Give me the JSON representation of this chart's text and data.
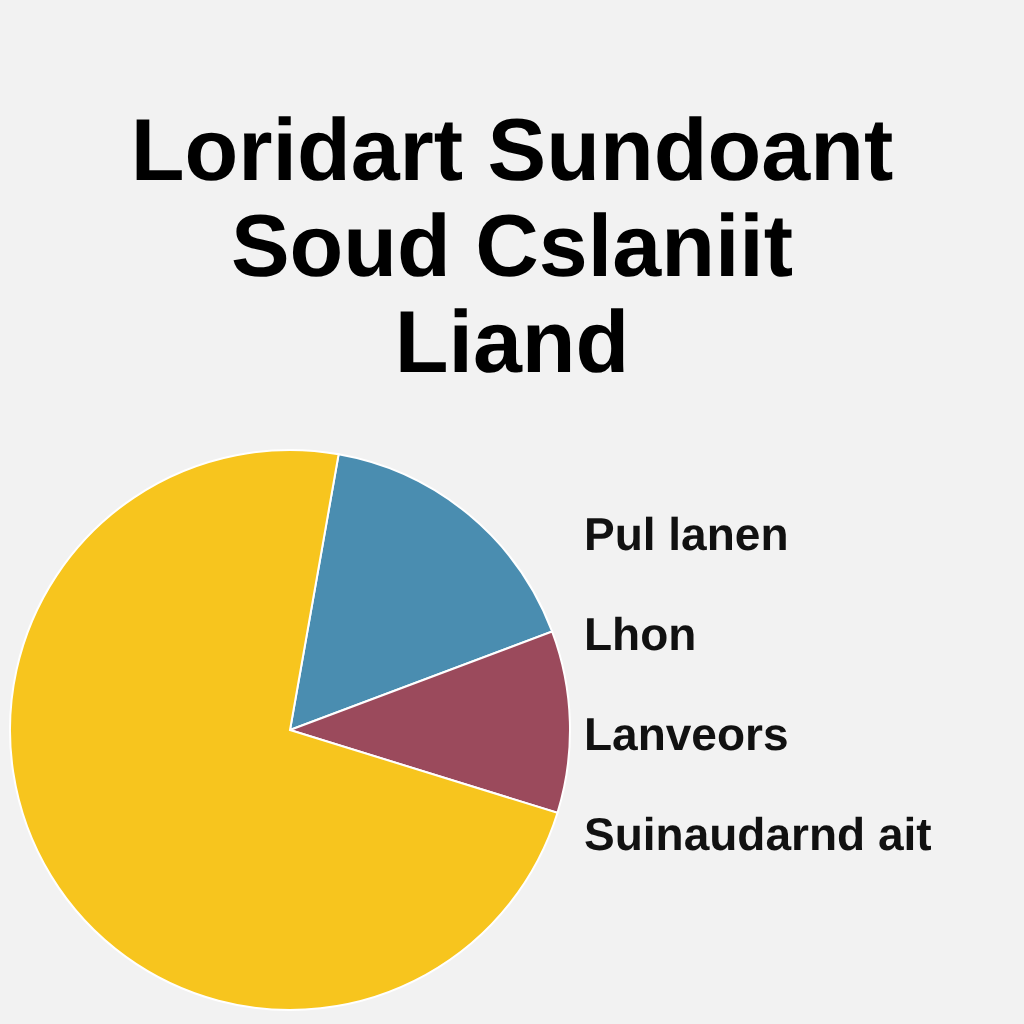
{
  "chart_data": {
    "type": "pie",
    "title": "Loridart Sundoant\nSoud Cslaniit\nLiand",
    "categories": [
      null,
      null,
      null
    ],
    "values": [
      16.5,
      10.5,
      73
    ],
    "colors": [
      "#4a8db0",
      "#9b4a5c",
      "#f7c51e"
    ],
    "annotations": [
      "Pul lanen",
      "Lhon",
      "Lanveors",
      "Suinaudarnd ait"
    ]
  }
}
